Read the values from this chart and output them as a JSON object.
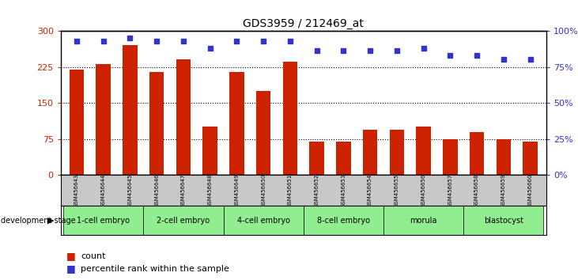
{
  "title": "GDS3959 / 212469_at",
  "samples": [
    "GSM456643",
    "GSM456644",
    "GSM456645",
    "GSM456646",
    "GSM456647",
    "GSM456648",
    "GSM456649",
    "GSM456650",
    "GSM456651",
    "GSM456652",
    "GSM456653",
    "GSM456654",
    "GSM456655",
    "GSM456656",
    "GSM456657",
    "GSM456658",
    "GSM456659",
    "GSM456660"
  ],
  "counts": [
    220,
    230,
    270,
    215,
    240,
    100,
    215,
    175,
    235,
    70,
    70,
    95,
    95,
    100,
    75,
    90,
    75,
    70
  ],
  "percentiles": [
    93,
    93,
    95,
    93,
    93,
    88,
    93,
    93,
    93,
    86,
    86,
    86,
    86,
    88,
    83,
    83,
    80,
    80
  ],
  "stages": [
    {
      "label": "1-cell embryo",
      "start": 0,
      "end": 3
    },
    {
      "label": "2-cell embryo",
      "start": 3,
      "end": 6
    },
    {
      "label": "4-cell embryo",
      "start": 6,
      "end": 9
    },
    {
      "label": "8-cell embryo",
      "start": 9,
      "end": 12
    },
    {
      "label": "morula",
      "start": 12,
      "end": 15
    },
    {
      "label": "blastocyst",
      "start": 15,
      "end": 18
    }
  ],
  "bar_color": "#CC2200",
  "dot_color": "#3333CC",
  "left_ylim": [
    0,
    300
  ],
  "right_ylim": [
    0,
    100
  ],
  "left_yticks": [
    0,
    75,
    150,
    225,
    300
  ],
  "right_yticks": [
    0,
    25,
    50,
    75,
    100
  ],
  "right_yticklabels": [
    "0%",
    "25%",
    "50%",
    "75%",
    "100%"
  ],
  "stage_color": "#90EE90",
  "label_bg_color": "#C8C8C8",
  "grid_dotted_values": [
    75,
    150,
    225
  ],
  "legend_count_color": "#CC2200",
  "legend_pct_color": "#3333CC"
}
